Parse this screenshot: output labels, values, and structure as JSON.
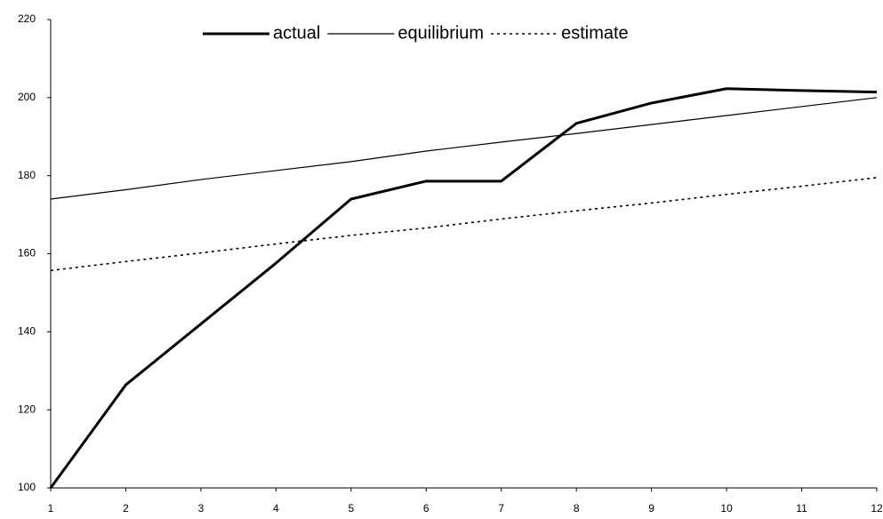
{
  "chart_data": {
    "type": "line",
    "x": [
      1,
      2,
      3,
      4,
      5,
      6,
      7,
      8,
      9,
      10,
      11,
      12
    ],
    "series": [
      {
        "name": "actual",
        "color": "#000000",
        "line_width": 3,
        "dash": "none",
        "values": [
          100,
          126.4,
          142,
          157.6,
          174,
          178.6,
          178.6,
          193.4,
          198.6,
          202.3,
          201.8,
          201.4
        ]
      },
      {
        "name": "equilibrium",
        "color": "#000000",
        "line_width": 1.2,
        "dash": "none",
        "values": [
          174,
          176.4,
          179,
          181.3,
          183.6,
          186.3,
          188.6,
          190.8,
          193.1,
          195.4,
          197.7,
          200
        ]
      },
      {
        "name": "estimate",
        "color": "#000000",
        "line_width": 1.6,
        "dash": "3 4",
        "values": [
          155.7,
          158,
          160.2,
          162.5,
          164.7,
          166.6,
          168.9,
          171,
          173,
          175.2,
          177.3,
          179.5
        ]
      }
    ],
    "xlim": [
      1,
      12
    ],
    "xticks": [
      1,
      2,
      3,
      4,
      5,
      6,
      7,
      8,
      9,
      10,
      11,
      12
    ],
    "ylim": [
      100,
      220
    ],
    "yticks": [
      100,
      120,
      140,
      160,
      180,
      200,
      220
    ],
    "grid": false,
    "legend": "top"
  }
}
